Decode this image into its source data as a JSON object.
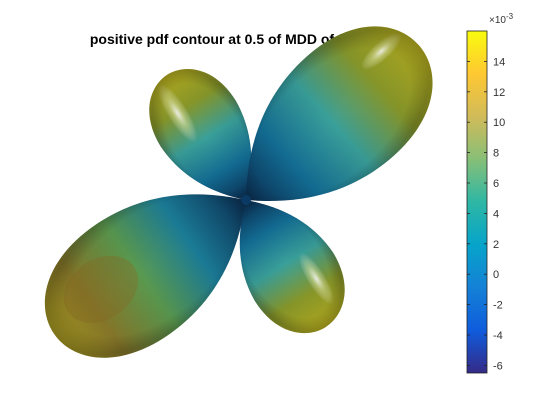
{
  "title": "positive pdf contour at 0.5 of MDD of free water",
  "colorbar": {
    "exponent_base": "×10",
    "exponent_power": "-3",
    "ticks": [
      "14",
      "12",
      "10",
      "8",
      "6",
      "4",
      "2",
      "0",
      "-2",
      "-4",
      "-6"
    ],
    "tick_values": [
      14,
      12,
      10,
      8,
      6,
      4,
      2,
      0,
      -2,
      -4,
      -6
    ],
    "range": [
      -6.5,
      16
    ],
    "colormap": "parula",
    "colormap_stops": [
      "#352a87",
      "#0f5cdd",
      "#1481d6",
      "#06a4ca",
      "#2eb7a4",
      "#87bf77",
      "#d1bb59",
      "#fec832",
      "#f9fb0e"
    ]
  },
  "surface": {
    "description_colors": {
      "center": "#0a3a63",
      "mid": "#1a8fb5",
      "outer": "#8a9a2a",
      "tip": "#c8c020",
      "highlight": "#ffffff"
    }
  }
}
